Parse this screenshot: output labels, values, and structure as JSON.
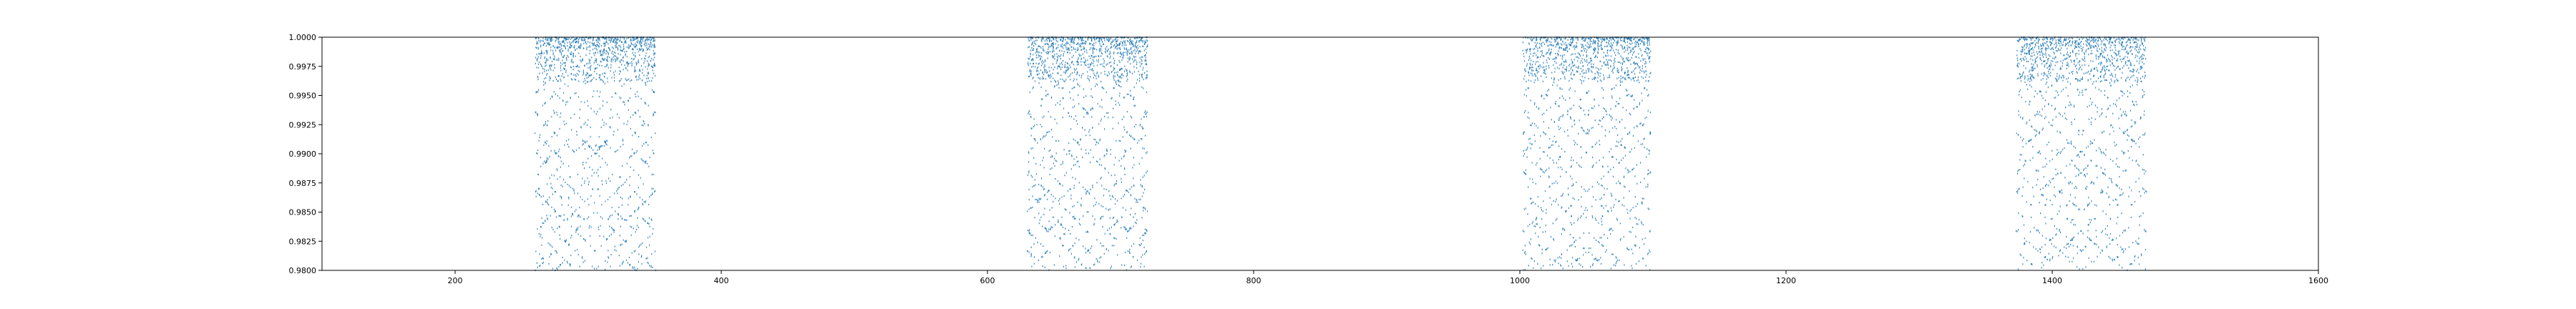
{
  "chart_data": {
    "type": "scatter",
    "title": "",
    "xlabel": "",
    "ylabel": "",
    "xlim": [
      100,
      1600
    ],
    "ylim": [
      0.98,
      1.0
    ],
    "xticks": [
      200,
      400,
      600,
      800,
      1000,
      1200,
      1400,
      1600
    ],
    "yticks": [
      0.98,
      0.9825,
      0.985,
      0.9875,
      0.99,
      0.9925,
      0.995,
      0.9975,
      1.0
    ],
    "xtick_labels": [
      "200",
      "400",
      "600",
      "800",
      "1000",
      "1200",
      "1400",
      "1600"
    ],
    "ytick_labels": [
      "0.9800",
      "0.9825",
      "0.9850",
      "0.9875",
      "0.9900",
      "0.9925",
      "0.9950",
      "0.9975",
      "1.0000"
    ],
    "grid": false,
    "marker_color": "#1f77b4",
    "marker": "tiny point",
    "series": [
      {
        "clusters": [
          {
            "x_range": [
              260,
              350
            ],
            "dense_y_range": [
              0.9962,
              1.0
            ],
            "sparse_y_range": [
              0.98,
              0.9962
            ]
          },
          {
            "x_range": [
              630,
              720
            ],
            "dense_y_range": [
              0.9962,
              1.0
            ],
            "sparse_y_range": [
              0.98,
              0.9962
            ]
          },
          {
            "x_range": [
              1002,
              1098
            ],
            "dense_y_range": [
              0.9962,
              1.0
            ],
            "sparse_y_range": [
              0.98,
              0.9962
            ]
          },
          {
            "x_range": [
              1373,
              1470
            ],
            "dense_y_range": [
              0.9962,
              1.0
            ],
            "sparse_y_range": [
              0.98,
              0.9962
            ]
          }
        ]
      }
    ]
  }
}
